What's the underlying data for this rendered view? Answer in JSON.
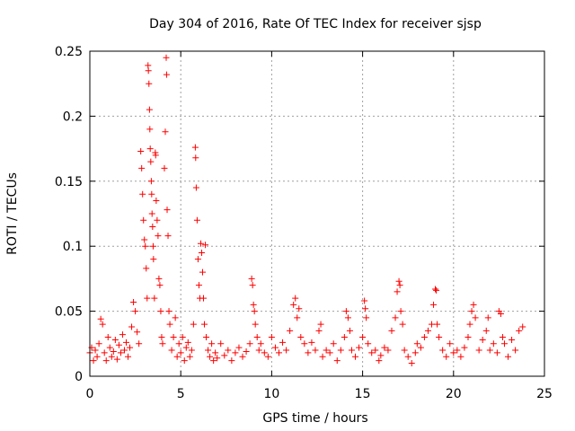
{
  "chart_data": {
    "type": "scatter",
    "title": "Day 304 of 2016, Rate Of TEC Index for receiver sjsp",
    "xlabel": "GPS time / hours",
    "ylabel": "ROTI / TECUs",
    "xlim": [
      0,
      25
    ],
    "ylim": [
      0,
      0.25
    ],
    "xticks": [
      0,
      5,
      10,
      15,
      20,
      25
    ],
    "xtick_labels": [
      "0",
      "5",
      "10",
      "15",
      "20",
      "25"
    ],
    "yticks": [
      0,
      0.05,
      0.1,
      0.15,
      0.2,
      0.25
    ],
    "ytick_labels": [
      "0",
      "0.05",
      "0.1",
      "0.15",
      "0.2",
      "0.25"
    ],
    "grid": true,
    "marker": "+",
    "marker_color": "#ff0000",
    "series": [
      {
        "name": "ROTI",
        "points": [
          [
            0.0,
            0.018
          ],
          [
            0.1,
            0.022
          ],
          [
            0.2,
            0.012
          ],
          [
            0.3,
            0.02
          ],
          [
            0.4,
            0.015
          ],
          [
            0.5,
            0.025
          ],
          [
            0.6,
            0.044
          ],
          [
            0.7,
            0.04
          ],
          [
            0.8,
            0.018
          ],
          [
            0.9,
            0.012
          ],
          [
            1.0,
            0.03
          ],
          [
            1.1,
            0.022
          ],
          [
            1.2,
            0.015
          ],
          [
            1.3,
            0.019
          ],
          [
            1.4,
            0.028
          ],
          [
            1.5,
            0.013
          ],
          [
            1.6,
            0.024
          ],
          [
            1.7,
            0.018
          ],
          [
            1.8,
            0.032
          ],
          [
            1.9,
            0.02
          ],
          [
            2.0,
            0.026
          ],
          [
            2.1,
            0.015
          ],
          [
            2.2,
            0.022
          ],
          [
            2.3,
            0.038
          ],
          [
            2.4,
            0.057
          ],
          [
            2.5,
            0.05
          ],
          [
            2.6,
            0.034
          ],
          [
            2.7,
            0.025
          ],
          [
            2.8,
            0.173
          ],
          [
            2.85,
            0.16
          ],
          [
            2.9,
            0.14
          ],
          [
            2.95,
            0.12
          ],
          [
            3.0,
            0.105
          ],
          [
            3.05,
            0.1
          ],
          [
            3.1,
            0.083
          ],
          [
            3.15,
            0.06
          ],
          [
            3.2,
            0.239
          ],
          [
            3.22,
            0.235
          ],
          [
            3.25,
            0.225
          ],
          [
            3.28,
            0.205
          ],
          [
            3.3,
            0.19
          ],
          [
            3.32,
            0.175
          ],
          [
            3.35,
            0.165
          ],
          [
            3.38,
            0.15
          ],
          [
            3.4,
            0.14
          ],
          [
            3.42,
            0.125
          ],
          [
            3.45,
            0.115
          ],
          [
            3.48,
            0.1
          ],
          [
            3.5,
            0.09
          ],
          [
            3.55,
            0.06
          ],
          [
            3.6,
            0.172
          ],
          [
            3.62,
            0.17
          ],
          [
            3.65,
            0.135
          ],
          [
            3.7,
            0.12
          ],
          [
            3.75,
            0.108
          ],
          [
            3.8,
            0.075
          ],
          [
            3.85,
            0.07
          ],
          [
            3.9,
            0.05
          ],
          [
            3.95,
            0.03
          ],
          [
            4.0,
            0.025
          ],
          [
            4.1,
            0.16
          ],
          [
            4.15,
            0.188
          ],
          [
            4.2,
            0.245
          ],
          [
            4.22,
            0.232
          ],
          [
            4.25,
            0.128
          ],
          [
            4.3,
            0.108
          ],
          [
            4.35,
            0.05
          ],
          [
            4.4,
            0.04
          ],
          [
            4.5,
            0.02
          ],
          [
            4.6,
            0.03
          ],
          [
            4.7,
            0.045
          ],
          [
            4.8,
            0.015
          ],
          [
            4.9,
            0.025
          ],
          [
            5.0,
            0.018
          ],
          [
            5.1,
            0.03
          ],
          [
            5.2,
            0.012
          ],
          [
            5.3,
            0.022
          ],
          [
            5.4,
            0.026
          ],
          [
            5.5,
            0.015
          ],
          [
            5.6,
            0.02
          ],
          [
            5.7,
            0.04
          ],
          [
            5.8,
            0.176
          ],
          [
            5.82,
            0.168
          ],
          [
            5.85,
            0.145
          ],
          [
            5.9,
            0.12
          ],
          [
            5.95,
            0.09
          ],
          [
            6.0,
            0.07
          ],
          [
            6.05,
            0.06
          ],
          [
            6.1,
            0.102
          ],
          [
            6.15,
            0.095
          ],
          [
            6.2,
            0.08
          ],
          [
            6.25,
            0.06
          ],
          [
            6.3,
            0.04
          ],
          [
            6.35,
            0.101
          ],
          [
            6.4,
            0.03
          ],
          [
            6.5,
            0.02
          ],
          [
            6.6,
            0.015
          ],
          [
            6.7,
            0.025
          ],
          [
            6.8,
            0.012
          ],
          [
            6.9,
            0.018
          ],
          [
            7.0,
            0.014
          ],
          [
            7.2,
            0.025
          ],
          [
            7.4,
            0.016
          ],
          [
            7.6,
            0.02
          ],
          [
            7.8,
            0.012
          ],
          [
            8.0,
            0.018
          ],
          [
            8.2,
            0.022
          ],
          [
            8.4,
            0.015
          ],
          [
            8.6,
            0.019
          ],
          [
            8.8,
            0.025
          ],
          [
            8.9,
            0.075
          ],
          [
            8.95,
            0.07
          ],
          [
            9.0,
            0.055
          ],
          [
            9.05,
            0.05
          ],
          [
            9.1,
            0.04
          ],
          [
            9.2,
            0.03
          ],
          [
            9.3,
            0.02
          ],
          [
            9.4,
            0.025
          ],
          [
            9.6,
            0.018
          ],
          [
            9.8,
            0.015
          ],
          [
            10.0,
            0.03
          ],
          [
            10.2,
            0.022
          ],
          [
            10.4,
            0.018
          ],
          [
            10.6,
            0.026
          ],
          [
            10.8,
            0.02
          ],
          [
            11.0,
            0.035
          ],
          [
            11.2,
            0.055
          ],
          [
            11.3,
            0.06
          ],
          [
            11.4,
            0.045
          ],
          [
            11.5,
            0.052
          ],
          [
            11.6,
            0.03
          ],
          [
            11.8,
            0.025
          ],
          [
            12.0,
            0.018
          ],
          [
            12.2,
            0.026
          ],
          [
            12.4,
            0.02
          ],
          [
            12.6,
            0.035
          ],
          [
            12.7,
            0.04
          ],
          [
            12.8,
            0.015
          ],
          [
            13.0,
            0.02
          ],
          [
            13.2,
            0.018
          ],
          [
            13.4,
            0.025
          ],
          [
            13.6,
            0.012
          ],
          [
            13.8,
            0.02
          ],
          [
            14.0,
            0.03
          ],
          [
            14.1,
            0.05
          ],
          [
            14.2,
            0.045
          ],
          [
            14.3,
            0.035
          ],
          [
            14.4,
            0.02
          ],
          [
            14.6,
            0.015
          ],
          [
            14.8,
            0.022
          ],
          [
            15.0,
            0.03
          ],
          [
            15.1,
            0.058
          ],
          [
            15.15,
            0.052
          ],
          [
            15.2,
            0.045
          ],
          [
            15.3,
            0.025
          ],
          [
            15.5,
            0.018
          ],
          [
            15.7,
            0.02
          ],
          [
            15.9,
            0.012
          ],
          [
            16.0,
            0.016
          ],
          [
            16.2,
            0.022
          ],
          [
            16.4,
            0.02
          ],
          [
            16.6,
            0.035
          ],
          [
            16.8,
            0.045
          ],
          [
            16.9,
            0.065
          ],
          [
            17.0,
            0.073
          ],
          [
            17.05,
            0.07
          ],
          [
            17.1,
            0.05
          ],
          [
            17.2,
            0.04
          ],
          [
            17.3,
            0.02
          ],
          [
            17.5,
            0.015
          ],
          [
            17.7,
            0.01
          ],
          [
            17.9,
            0.018
          ],
          [
            18.0,
            0.025
          ],
          [
            18.2,
            0.022
          ],
          [
            18.4,
            0.03
          ],
          [
            18.6,
            0.035
          ],
          [
            18.8,
            0.04
          ],
          [
            18.9,
            0.055
          ],
          [
            19.0,
            0.067
          ],
          [
            19.05,
            0.066
          ],
          [
            19.1,
            0.04
          ],
          [
            19.2,
            0.03
          ],
          [
            19.4,
            0.02
          ],
          [
            19.6,
            0.015
          ],
          [
            19.8,
            0.025
          ],
          [
            20.0,
            0.018
          ],
          [
            20.2,
            0.02
          ],
          [
            20.4,
            0.015
          ],
          [
            20.6,
            0.022
          ],
          [
            20.8,
            0.03
          ],
          [
            20.9,
            0.04
          ],
          [
            21.0,
            0.05
          ],
          [
            21.1,
            0.055
          ],
          [
            21.2,
            0.045
          ],
          [
            21.4,
            0.02
          ],
          [
            21.6,
            0.028
          ],
          [
            21.8,
            0.035
          ],
          [
            21.9,
            0.045
          ],
          [
            22.0,
            0.02
          ],
          [
            22.2,
            0.025
          ],
          [
            22.4,
            0.018
          ],
          [
            22.5,
            0.05
          ],
          [
            22.6,
            0.048
          ],
          [
            22.7,
            0.03
          ],
          [
            22.8,
            0.025
          ],
          [
            23.0,
            0.015
          ],
          [
            23.2,
            0.028
          ],
          [
            23.4,
            0.02
          ],
          [
            23.6,
            0.035
          ],
          [
            23.8,
            0.038
          ]
        ]
      }
    ]
  }
}
